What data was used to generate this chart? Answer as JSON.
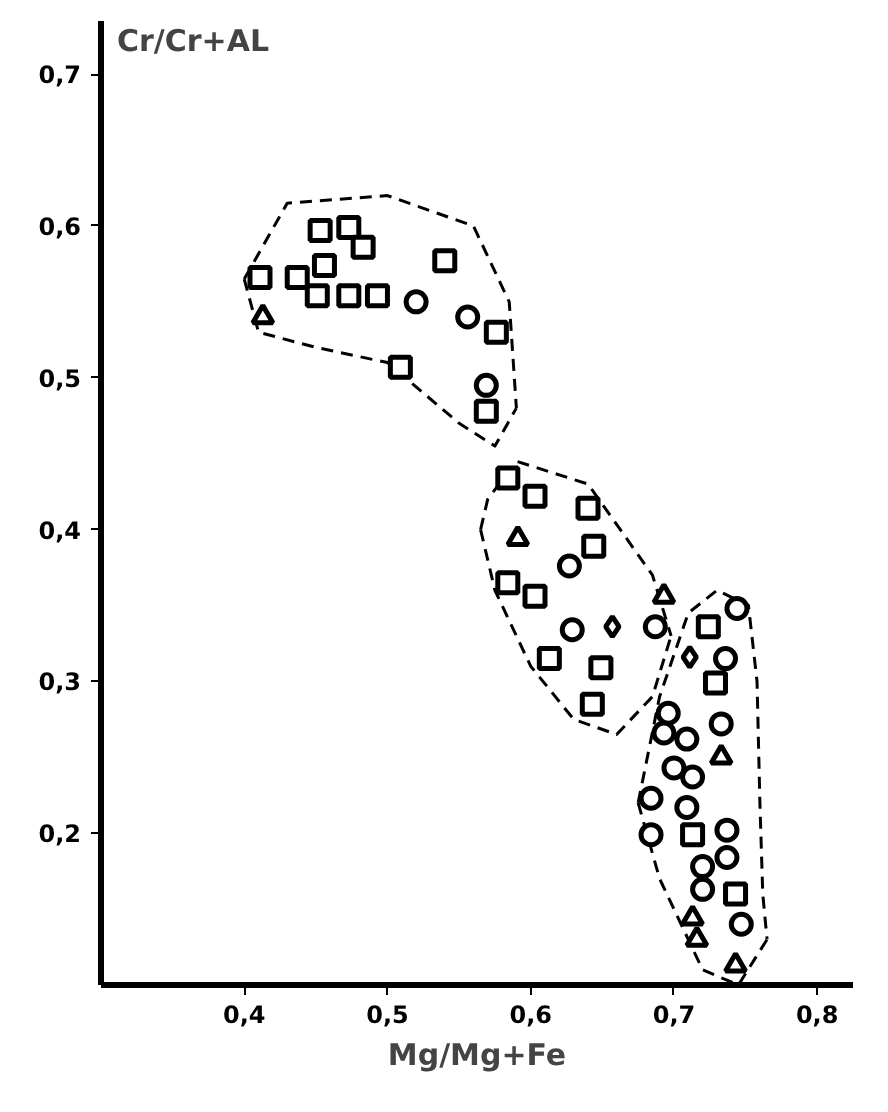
{
  "chart_data": {
    "type": "scatter",
    "xlabel": "Mg/Mg+Fe",
    "ylabel": "Cr/Cr+AL",
    "xlim": [
      0.3,
      0.825
    ],
    "ylim": [
      0.1,
      0.735
    ],
    "xticks": [
      {
        "value": 0.4,
        "label": "0,4"
      },
      {
        "value": 0.5,
        "label": "0,5"
      },
      {
        "value": 0.6,
        "label": "0,6"
      },
      {
        "value": 0.7,
        "label": "0,7"
      },
      {
        "value": 0.8,
        "label": "0,8"
      }
    ],
    "yticks": [
      {
        "value": 0.2,
        "label": "0,2"
      },
      {
        "value": 0.3,
        "label": "0,3"
      },
      {
        "value": 0.4,
        "label": "0,4"
      },
      {
        "value": 0.5,
        "label": "0,5"
      },
      {
        "value": 0.6,
        "label": "0,6"
      },
      {
        "value": 0.7,
        "label": "0,7"
      }
    ],
    "grid": false,
    "series": [
      {
        "type": "line",
        "line_style": "dashed",
        "marker": "none",
        "color": "#000000",
        "x": [
          0.4,
          0.43,
          0.5,
          0.56,
          0.585,
          0.59
        ],
        "values": [
          0.565,
          0.615,
          0.62,
          0.6,
          0.55,
          0.48
        ]
      },
      {
        "type": "line",
        "line_style": "dashed",
        "marker": "none",
        "color": "#000000",
        "x": [
          0.4,
          0.41,
          0.45,
          0.5,
          0.55,
          0.575,
          0.59
        ],
        "values": [
          0.565,
          0.53,
          0.52,
          0.51,
          0.47,
          0.455,
          0.48
        ]
      },
      {
        "type": "line",
        "line_style": "dashed",
        "marker": "none",
        "color": "#000000",
        "x": [
          0.565,
          0.57,
          0.59,
          0.64,
          0.685,
          0.698
        ],
        "values": [
          0.4,
          0.42,
          0.445,
          0.43,
          0.37,
          0.33
        ]
      },
      {
        "type": "line",
        "line_style": "dashed",
        "marker": "none",
        "color": "#000000",
        "x": [
          0.565,
          0.575,
          0.6,
          0.63,
          0.66,
          0.685,
          0.698
        ],
        "values": [
          0.4,
          0.36,
          0.31,
          0.275,
          0.265,
          0.29,
          0.33
        ]
      },
      {
        "type": "line",
        "line_style": "dashed",
        "marker": "none",
        "color": "#000000",
        "x": [
          0.675,
          0.69,
          0.71,
          0.73,
          0.752,
          0.758,
          0.76,
          0.762,
          0.765
        ],
        "values": [
          0.22,
          0.29,
          0.345,
          0.36,
          0.35,
          0.3,
          0.22,
          0.16,
          0.13
        ]
      },
      {
        "type": "line",
        "line_style": "dashed",
        "marker": "none",
        "color": "#000000",
        "x": [
          0.675,
          0.69,
          0.72,
          0.745,
          0.765
        ],
        "values": [
          0.22,
          0.17,
          0.11,
          0.1,
          0.13
        ]
      },
      {
        "marker": "square",
        "color": "#000000",
        "x": [
          0.411,
          0.437,
          0.453,
          0.473,
          0.456,
          0.483,
          0.451,
          0.473,
          0.493,
          0.54,
          0.576,
          0.509,
          0.569,
          0.724,
          0.729,
          0.713,
          0.743
        ],
        "values": [
          0.566,
          0.566,
          0.597,
          0.599,
          0.574,
          0.586,
          0.554,
          0.554,
          0.554,
          0.577,
          0.53,
          0.507,
          0.478,
          0.336,
          0.299,
          0.199,
          0.16
        ]
      },
      {
        "marker": "square",
        "color": "#000000",
        "x": [
          0.584,
          0.603,
          0.64,
          0.644,
          0.584,
          0.603,
          0.613,
          0.649,
          0.643
        ],
        "values": [
          0.434,
          0.422,
          0.414,
          0.389,
          0.365,
          0.356,
          0.315,
          0.309,
          0.285
        ]
      },
      {
        "marker": "circle",
        "color": "#000000",
        "x": [
          0.556,
          0.627,
          0.629,
          0.744,
          0.709,
          0.747
        ],
        "values": [
          0.54,
          0.376,
          0.334,
          0.348,
          0.217,
          0.14
        ]
      },
      {
        "marker": "circle",
        "color": "#000000",
        "x": [
          0.52,
          0.569,
          0.687,
          0.736,
          0.696,
          0.693,
          0.709,
          0.733,
          0.7,
          0.713,
          0.684,
          0.684,
          0.737,
          0.737,
          0.72,
          0.72
        ],
        "values": [
          0.55,
          0.495,
          0.336,
          0.315,
          0.279,
          0.266,
          0.262,
          0.272,
          0.243,
          0.237,
          0.223,
          0.199,
          0.202,
          0.184,
          0.178,
          0.163
        ]
      },
      {
        "marker": "triangle",
        "color": "#000000",
        "x": [
          0.591,
          0.693,
          0.733
        ],
        "values": [
          0.394,
          0.356,
          0.25
        ]
      },
      {
        "marker": "triangle",
        "color": "#000000",
        "x": [
          0.413
        ],
        "values": [
          0.54
        ]
      },
      {
        "marker": "triangle",
        "color": "#000000",
        "x": [
          0.713,
          0.716,
          0.743
        ],
        "values": [
          0.144,
          0.13,
          0.113
        ]
      },
      {
        "marker": "diamond",
        "color": "#000000",
        "x": [
          0.657,
          0.711
        ],
        "values": [
          0.336,
          0.316
        ]
      }
    ]
  }
}
